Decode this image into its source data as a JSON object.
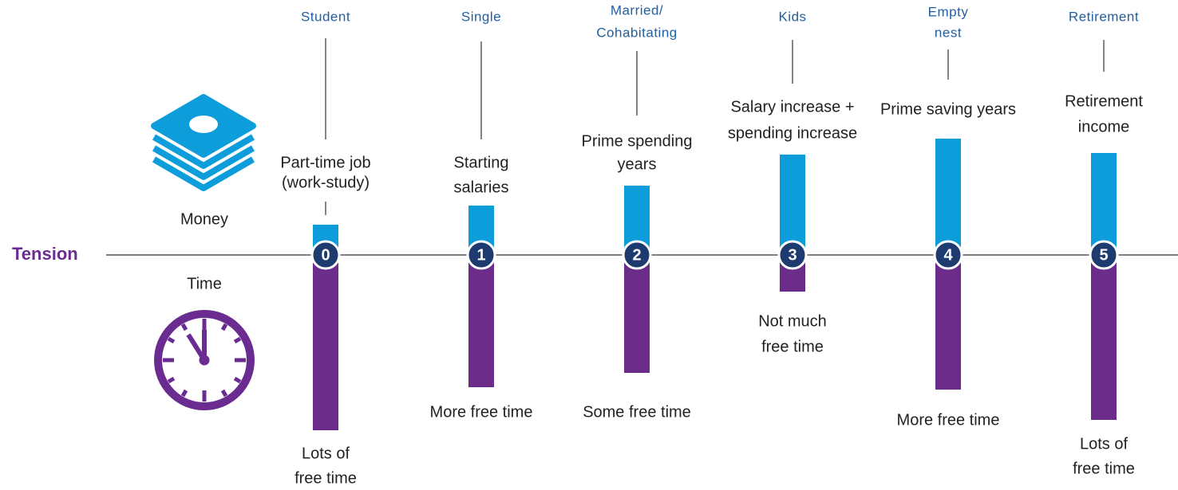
{
  "axis_label": "Tension",
  "money_label": "Money",
  "time_label": "Time",
  "stages": [
    {
      "name": [
        "Student"
      ],
      "number": 0,
      "money_note": [
        "Part-time job",
        "(work-study)"
      ],
      "time_note": [
        "Lots of",
        "free time"
      ]
    },
    {
      "name": [
        "Single"
      ],
      "number": 1,
      "money_note": [
        "Starting",
        "salaries"
      ],
      "time_note": [
        "More free time"
      ]
    },
    {
      "name": [
        "Married/",
        "Cohabitating"
      ],
      "number": 2,
      "money_note": [
        "Prime spending",
        "years"
      ],
      "time_note": [
        "Some free time"
      ]
    },
    {
      "name": [
        "Kids"
      ],
      "number": 3,
      "money_note": [
        "Salary increase +",
        "spending increase"
      ],
      "time_note": [
        "Not much",
        "free time"
      ]
    },
    {
      "name": [
        "Empty",
        "nest"
      ],
      "number": 4,
      "money_note": [
        "Prime saving years"
      ],
      "time_note": [
        "More free time"
      ]
    },
    {
      "name": [
        "Retirement"
      ],
      "number": 5,
      "money_note": [
        "Retirement",
        "income"
      ],
      "time_note": [
        "Lots of",
        "free time"
      ]
    }
  ]
}
